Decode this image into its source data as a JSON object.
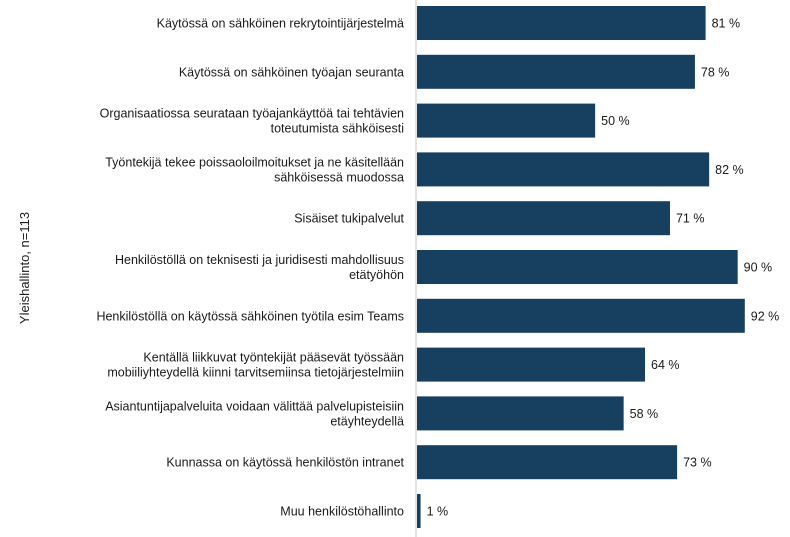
{
  "chart_data": {
    "type": "bar",
    "orientation": "horizontal",
    "ylabel": "Yleishallinto, n=113",
    "value_suffix": " %",
    "xlim": [
      0,
      100
    ],
    "bar_color": "#173f5f",
    "grid": false,
    "categories": [
      [
        "Käytössä on sähköinen rekrytointijärjestelmä"
      ],
      [
        "Käytössä on sähköinen työajan seuranta"
      ],
      [
        "Organisaatiossa seurataan työajankäyttöä tai tehtävien",
        "toteutumista sähköisesti"
      ],
      [
        "Työntekijä tekee poissaoloilmoitukset ja ne käsitellään",
        "sähköisessä muodossa"
      ],
      [
        "Sisäiset tukipalvelut"
      ],
      [
        "Henkilöstöllä on teknisesti ja juridisesti mahdollisuus",
        "etätyöhön"
      ],
      [
        "Henkilöstöllä on käytössä sähköinen työtila esim Teams"
      ],
      [
        "Kentällä liikkuvat työntekijät pääsevät työssään",
        "mobiiliyhteydellä kiinni tarvitsemiinsa tietojärjestelmiin"
      ],
      [
        "Asiantuntijapalveluita voidaan välittää palvelupisteisiin",
        "etäyhteydellä"
      ],
      [
        "Kunnassa on käytössä henkilöstön intranet"
      ],
      [
        "Muu henkilöstöhallinto"
      ]
    ],
    "values": [
      81,
      78,
      50,
      82,
      71,
      90,
      92,
      64,
      58,
      73,
      1
    ]
  }
}
